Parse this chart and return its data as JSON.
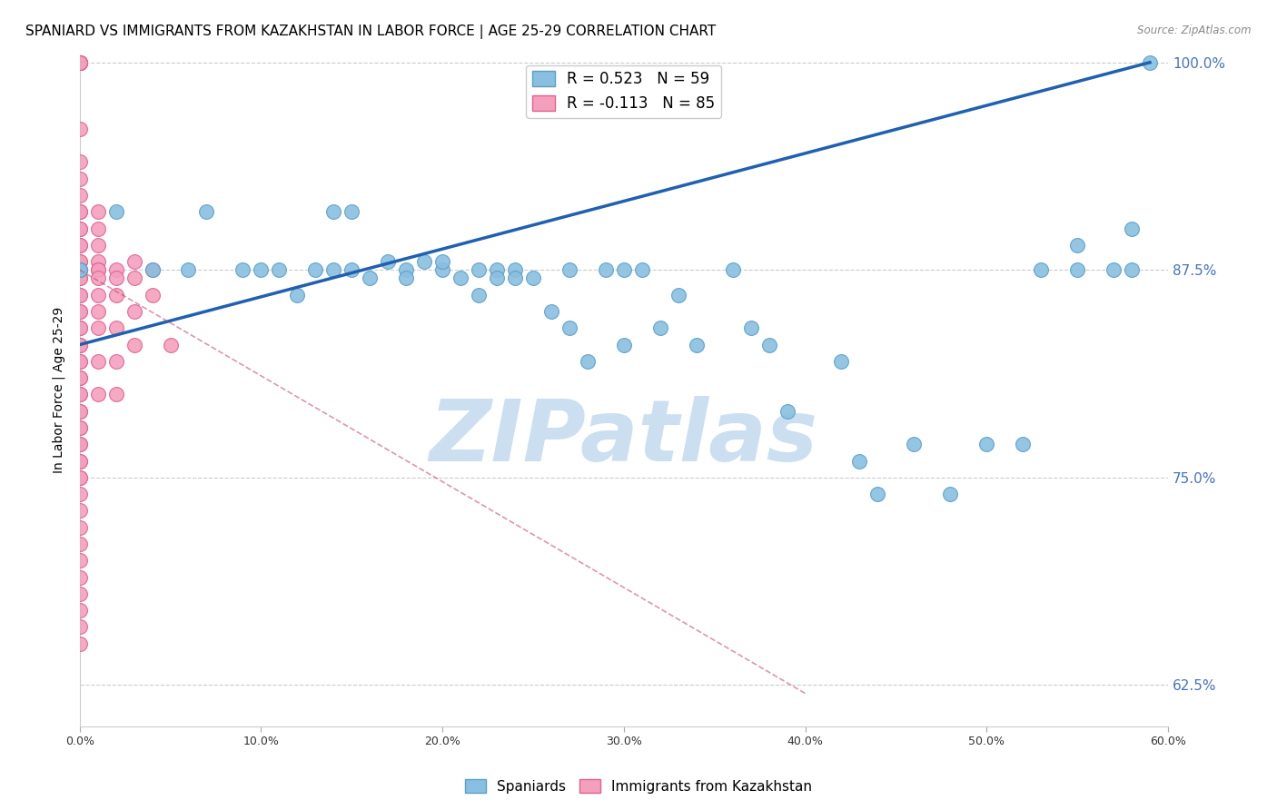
{
  "title": "SPANIARD VS IMMIGRANTS FROM KAZAKHSTAN IN LABOR FORCE | AGE 25-29 CORRELATION CHART",
  "source": "Source: ZipAtlas.com",
  "ylabel": "In Labor Force | Age 25-29",
  "xlim": [
    0.0,
    0.6
  ],
  "ylim": [
    0.6,
    1.005
  ],
  "yticks": [
    0.625,
    0.75,
    0.875,
    1.0
  ],
  "ytick_labels": [
    "62.5%",
    "75.0%",
    "87.5%",
    "100.0%"
  ],
  "xticks": [
    0.0,
    0.1,
    0.2,
    0.3,
    0.4,
    0.5,
    0.6
  ],
  "xtick_labels": [
    "0.0%",
    "10.0%",
    "20.0%",
    "30.0%",
    "40.0%",
    "50.0%",
    "60.0%"
  ],
  "blue_color": "#89bfe0",
  "pink_color": "#f4a0bc",
  "blue_edge": "#5a9ec8",
  "pink_edge": "#e06090",
  "trend_blue": "#2060b0",
  "trend_pink": "#c04070",
  "blue_scatter_x": [
    0.0,
    0.0,
    0.02,
    0.04,
    0.06,
    0.07,
    0.09,
    0.1,
    0.11,
    0.12,
    0.13,
    0.14,
    0.14,
    0.15,
    0.15,
    0.16,
    0.17,
    0.18,
    0.18,
    0.19,
    0.2,
    0.2,
    0.21,
    0.22,
    0.22,
    0.23,
    0.23,
    0.24,
    0.24,
    0.25,
    0.26,
    0.27,
    0.27,
    0.28,
    0.29,
    0.3,
    0.3,
    0.31,
    0.32,
    0.33,
    0.34,
    0.36,
    0.37,
    0.38,
    0.39,
    0.42,
    0.43,
    0.44,
    0.46,
    0.48,
    0.5,
    0.52,
    0.53,
    0.55,
    0.55,
    0.57,
    0.58,
    0.58,
    0.59
  ],
  "blue_scatter_y": [
    0.875,
    0.875,
    0.91,
    0.875,
    0.875,
    0.91,
    0.875,
    0.875,
    0.875,
    0.86,
    0.875,
    0.91,
    0.875,
    0.91,
    0.875,
    0.87,
    0.88,
    0.875,
    0.87,
    0.88,
    0.875,
    0.88,
    0.87,
    0.875,
    0.86,
    0.875,
    0.87,
    0.875,
    0.87,
    0.87,
    0.85,
    0.84,
    0.875,
    0.82,
    0.875,
    0.83,
    0.875,
    0.875,
    0.84,
    0.86,
    0.83,
    0.875,
    0.84,
    0.83,
    0.79,
    0.82,
    0.76,
    0.74,
    0.77,
    0.74,
    0.77,
    0.77,
    0.875,
    0.875,
    0.89,
    0.875,
    0.875,
    0.9,
    1.0
  ],
  "pink_scatter_x": [
    0.0,
    0.0,
    0.0,
    0.0,
    0.0,
    0.0,
    0.0,
    0.0,
    0.0,
    0.0,
    0.0,
    0.0,
    0.0,
    0.0,
    0.0,
    0.0,
    0.0,
    0.0,
    0.0,
    0.0,
    0.0,
    0.0,
    0.0,
    0.0,
    0.0,
    0.0,
    0.0,
    0.0,
    0.0,
    0.0,
    0.0,
    0.0,
    0.0,
    0.0,
    0.0,
    0.0,
    0.0,
    0.0,
    0.0,
    0.0,
    0.0,
    0.0,
    0.0,
    0.0,
    0.0,
    0.0,
    0.0,
    0.0,
    0.0,
    0.0,
    0.0,
    0.0,
    0.0,
    0.0,
    0.0,
    0.0,
    0.0,
    0.0,
    0.0,
    0.0,
    0.01,
    0.01,
    0.01,
    0.01,
    0.01,
    0.01,
    0.01,
    0.01,
    0.01,
    0.01,
    0.01,
    0.01,
    0.02,
    0.02,
    0.02,
    0.02,
    0.02,
    0.02,
    0.03,
    0.03,
    0.03,
    0.03,
    0.04,
    0.04,
    0.05
  ],
  "pink_scatter_y": [
    1.0,
    1.0,
    1.0,
    1.0,
    1.0,
    1.0,
    1.0,
    1.0,
    1.0,
    1.0,
    0.96,
    0.94,
    0.93,
    0.92,
    0.91,
    0.91,
    0.9,
    0.9,
    0.89,
    0.89,
    0.88,
    0.88,
    0.875,
    0.875,
    0.87,
    0.87,
    0.86,
    0.86,
    0.85,
    0.85,
    0.84,
    0.84,
    0.83,
    0.83,
    0.82,
    0.82,
    0.81,
    0.81,
    0.8,
    0.8,
    0.79,
    0.79,
    0.78,
    0.78,
    0.77,
    0.77,
    0.76,
    0.76,
    0.75,
    0.75,
    0.74,
    0.73,
    0.72,
    0.71,
    0.7,
    0.69,
    0.68,
    0.67,
    0.66,
    0.65,
    0.91,
    0.9,
    0.89,
    0.88,
    0.875,
    0.875,
    0.87,
    0.86,
    0.85,
    0.84,
    0.82,
    0.8,
    0.875,
    0.87,
    0.86,
    0.84,
    0.82,
    0.8,
    0.88,
    0.87,
    0.85,
    0.83,
    0.875,
    0.86,
    0.83
  ],
  "blue_trend_x": [
    0.0,
    0.59
  ],
  "blue_trend_y": [
    0.83,
    1.0
  ],
  "pink_trend_x": [
    0.0,
    0.4
  ],
  "pink_trend_y": [
    0.875,
    0.62
  ],
  "watermark": "ZIPatlas",
  "watermark_color": "#ccdff0",
  "legend_blue_label": "R = 0.523   N = 59",
  "legend_pink_label": "R = -0.113   N = 85",
  "grid_color": "#cccccc",
  "background_color": "#ffffff"
}
